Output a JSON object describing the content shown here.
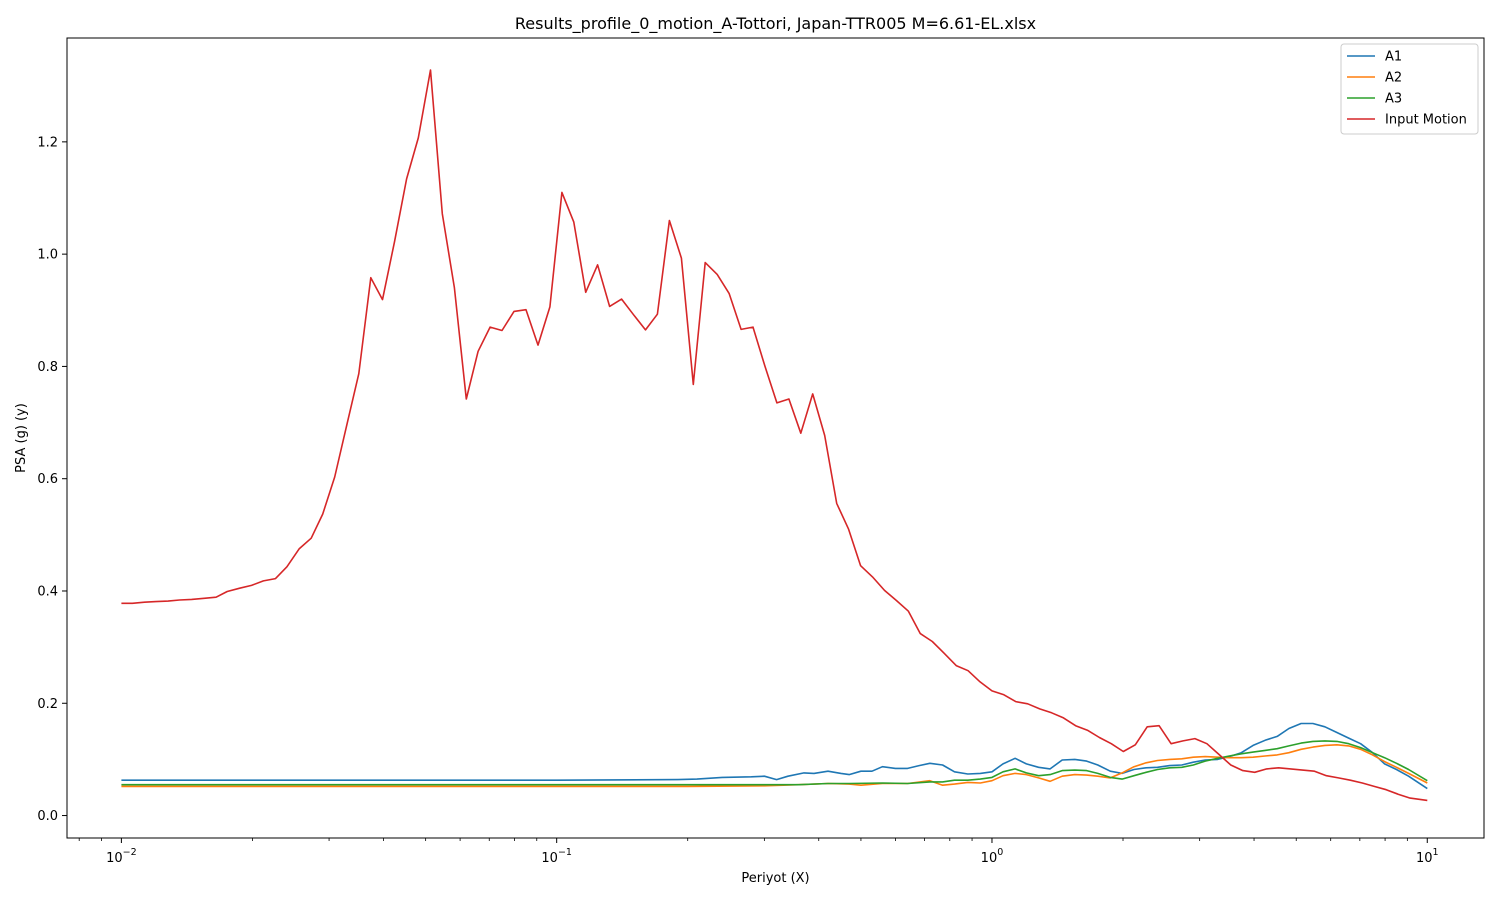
{
  "chart_data": {
    "type": "line",
    "title": "Results_profile_0_motion_A-Tottori, Japan-TTR005 M=6.61-EL.xlsx",
    "xlabel": "Periyot (X)",
    "ylabel": "PSA (g) (y)",
    "xscale": "log",
    "xlim": [
      0.0075,
      13.5
    ],
    "ylim": [
      -0.04,
      1.385
    ],
    "x_ticks": [
      {
        "value": 0.01,
        "mantissa": "10",
        "exponent": "−2"
      },
      {
        "value": 0.1,
        "mantissa": "10",
        "exponent": "−1"
      },
      {
        "value": 1,
        "mantissa": "10",
        "exponent": "0"
      },
      {
        "value": 10,
        "mantissa": "10",
        "exponent": "1"
      }
    ],
    "y_ticks": [
      {
        "value": 0.0,
        "label": "0.0"
      },
      {
        "value": 0.2,
        "label": "0.2"
      },
      {
        "value": 0.4,
        "label": "0.4"
      },
      {
        "value": 0.6,
        "label": "0.6"
      },
      {
        "value": 0.8,
        "label": "0.8"
      },
      {
        "value": 1.0,
        "label": "1.0"
      },
      {
        "value": 1.2,
        "label": "1.2"
      }
    ],
    "grid": false,
    "legend_position": "top-right",
    "series": [
      {
        "name": "A1",
        "color": "#1f77b4",
        "x": [
          0.01,
          0.1,
          0.19,
          0.21,
          0.24,
          0.28,
          0.3,
          0.32,
          0.34,
          0.37,
          0.39,
          0.42,
          0.45,
          0.47,
          0.5,
          0.53,
          0.56,
          0.6,
          0.64,
          0.68,
          0.72,
          0.77,
          0.82,
          0.88,
          0.94,
          1.0,
          1.06,
          1.13,
          1.2,
          1.28,
          1.36,
          1.45,
          1.55,
          1.65,
          1.75,
          1.87,
          1.99,
          2.12,
          2.26,
          2.4,
          2.56,
          2.73,
          2.9,
          3.09,
          3.3,
          3.51,
          3.74,
          3.98,
          4.24,
          4.52,
          4.81,
          5.13,
          5.46,
          5.82,
          6.2,
          6.6,
          7.03,
          7.49,
          7.98,
          8.5,
          9.06,
          10.0
        ],
        "y": [
          0.063,
          0.063,
          0.064,
          0.065,
          0.068,
          0.069,
          0.07,
          0.064,
          0.07,
          0.076,
          0.075,
          0.079,
          0.075,
          0.073,
          0.079,
          0.079,
          0.087,
          0.084,
          0.084,
          0.089,
          0.093,
          0.09,
          0.078,
          0.074,
          0.075,
          0.078,
          0.092,
          0.102,
          0.092,
          0.086,
          0.083,
          0.099,
          0.1,
          0.097,
          0.09,
          0.079,
          0.075,
          0.082,
          0.085,
          0.086,
          0.089,
          0.09,
          0.095,
          0.099,
          0.1,
          0.105,
          0.112,
          0.125,
          0.134,
          0.141,
          0.155,
          0.164,
          0.164,
          0.158,
          0.148,
          0.138,
          0.128,
          0.112,
          0.092,
          0.082,
          0.07,
          0.048
        ]
      },
      {
        "name": "A2",
        "color": "#ff7f0e",
        "x": [
          0.01,
          0.1,
          0.2,
          0.3,
          0.36,
          0.42,
          0.47,
          0.5,
          0.56,
          0.64,
          0.72,
          0.77,
          0.82,
          0.88,
          0.94,
          1.0,
          1.06,
          1.13,
          1.2,
          1.28,
          1.36,
          1.45,
          1.55,
          1.65,
          1.75,
          1.87,
          1.99,
          2.12,
          2.26,
          2.4,
          2.56,
          2.73,
          2.9,
          3.09,
          3.3,
          3.51,
          3.74,
          3.98,
          4.24,
          4.52,
          4.81,
          5.13,
          5.46,
          5.82,
          6.2,
          6.6,
          7.03,
          7.49,
          7.98,
          8.5,
          9.06,
          10.0
        ],
        "y": [
          0.052,
          0.052,
          0.052,
          0.053,
          0.055,
          0.057,
          0.056,
          0.054,
          0.057,
          0.057,
          0.062,
          0.054,
          0.056,
          0.059,
          0.058,
          0.062,
          0.071,
          0.075,
          0.073,
          0.067,
          0.061,
          0.07,
          0.073,
          0.072,
          0.07,
          0.067,
          0.076,
          0.087,
          0.094,
          0.098,
          0.1,
          0.101,
          0.104,
          0.105,
          0.104,
          0.103,
          0.103,
          0.104,
          0.106,
          0.108,
          0.112,
          0.118,
          0.122,
          0.125,
          0.126,
          0.124,
          0.118,
          0.108,
          0.096,
          0.086,
          0.075,
          0.058
        ]
      },
      {
        "name": "A3",
        "color": "#2ca02c",
        "x": [
          0.01,
          0.1,
          0.2,
          0.3,
          0.36,
          0.42,
          0.47,
          0.56,
          0.64,
          0.72,
          0.77,
          0.82,
          0.88,
          0.94,
          1.0,
          1.06,
          1.13,
          1.2,
          1.28,
          1.36,
          1.45,
          1.55,
          1.65,
          1.75,
          1.87,
          1.99,
          2.12,
          2.26,
          2.4,
          2.56,
          2.73,
          2.9,
          3.09,
          3.3,
          3.51,
          3.74,
          3.98,
          4.24,
          4.52,
          4.81,
          5.13,
          5.46,
          5.82,
          6.2,
          6.6,
          7.03,
          7.49,
          7.98,
          8.5,
          9.06,
          10.0
        ],
        "y": [
          0.055,
          0.055,
          0.055,
          0.055,
          0.055,
          0.057,
          0.057,
          0.058,
          0.057,
          0.06,
          0.06,
          0.063,
          0.063,
          0.065,
          0.068,
          0.078,
          0.083,
          0.076,
          0.071,
          0.073,
          0.08,
          0.081,
          0.08,
          0.075,
          0.068,
          0.065,
          0.071,
          0.077,
          0.082,
          0.085,
          0.086,
          0.09,
          0.097,
          0.102,
          0.106,
          0.11,
          0.113,
          0.116,
          0.119,
          0.124,
          0.129,
          0.132,
          0.133,
          0.132,
          0.128,
          0.121,
          0.112,
          0.103,
          0.093,
          0.082,
          0.062
        ]
      },
      {
        "name": "Input Motion",
        "color": "#d62728",
        "x": [
          0.01,
          0.0106,
          0.0113,
          0.012,
          0.0128,
          0.0136,
          0.0145,
          0.0155,
          0.0165,
          0.0175,
          0.0187,
          0.0199,
          0.0212,
          0.0226,
          0.024,
          0.0256,
          0.0273,
          0.029,
          0.0309,
          0.033,
          0.0351,
          0.0374,
          0.0398,
          0.0424,
          0.0452,
          0.0481,
          0.0513,
          0.0546,
          0.0582,
          0.062,
          0.066,
          0.0703,
          0.0749,
          0.0798,
          0.085,
          0.0906,
          0.0965,
          0.1028,
          0.1095,
          0.1166,
          0.1242,
          0.1323,
          0.141,
          0.1502,
          0.16,
          0.1704,
          0.1815,
          0.1934,
          0.206,
          0.2194,
          0.2337,
          0.249,
          0.2652,
          0.2825,
          0.301,
          0.3206,
          0.3415,
          0.3638,
          0.3875,
          0.4128,
          0.4398,
          0.4685,
          0.499,
          0.5316,
          0.5663,
          0.6033,
          0.6427,
          0.6846,
          0.7293,
          0.7769,
          0.8276,
          0.8816,
          0.9391,
          1.0,
          1.065,
          1.134,
          1.208,
          1.287,
          1.371,
          1.46,
          1.556,
          1.657,
          1.765,
          1.88,
          2.003,
          2.134,
          2.273,
          2.421,
          2.579,
          2.747,
          2.926,
          3.117,
          3.321,
          3.537,
          3.768,
          4.014,
          4.276,
          4.555,
          4.853,
          5.169,
          5.506,
          5.866,
          6.248,
          6.656,
          7.09,
          7.553,
          8.046,
          8.571,
          9.13,
          10.0
        ],
        "y": [
          0.378,
          0.378,
          0.38,
          0.381,
          0.382,
          0.384,
          0.385,
          0.387,
          0.389,
          0.399,
          0.405,
          0.41,
          0.418,
          0.422,
          0.443,
          0.475,
          0.494,
          0.537,
          0.603,
          0.698,
          0.787,
          0.958,
          0.919,
          1.022,
          1.134,
          1.207,
          1.328,
          1.072,
          0.94,
          0.742,
          0.827,
          0.87,
          0.864,
          0.898,
          0.901,
          0.838,
          0.906,
          1.11,
          1.057,
          0.932,
          0.981,
          0.907,
          0.92,
          0.892,
          0.865,
          0.893,
          1.06,
          0.993,
          0.768,
          0.985,
          0.964,
          0.93,
          0.866,
          0.87,
          0.8,
          0.735,
          0.742,
          0.681,
          0.751,
          0.677,
          0.556,
          0.51,
          0.445,
          0.425,
          0.401,
          0.383,
          0.364,
          0.324,
          0.31,
          0.289,
          0.267,
          0.258,
          0.238,
          0.222,
          0.215,
          0.203,
          0.199,
          0.19,
          0.183,
          0.174,
          0.16,
          0.152,
          0.139,
          0.128,
          0.114,
          0.126,
          0.158,
          0.16,
          0.128,
          0.133,
          0.137,
          0.128,
          0.109,
          0.09,
          0.08,
          0.077,
          0.083,
          0.085,
          0.083,
          0.081,
          0.079,
          0.071,
          0.067,
          0.063,
          0.058,
          0.052,
          0.046,
          0.038,
          0.031,
          0.027
        ]
      }
    ]
  }
}
